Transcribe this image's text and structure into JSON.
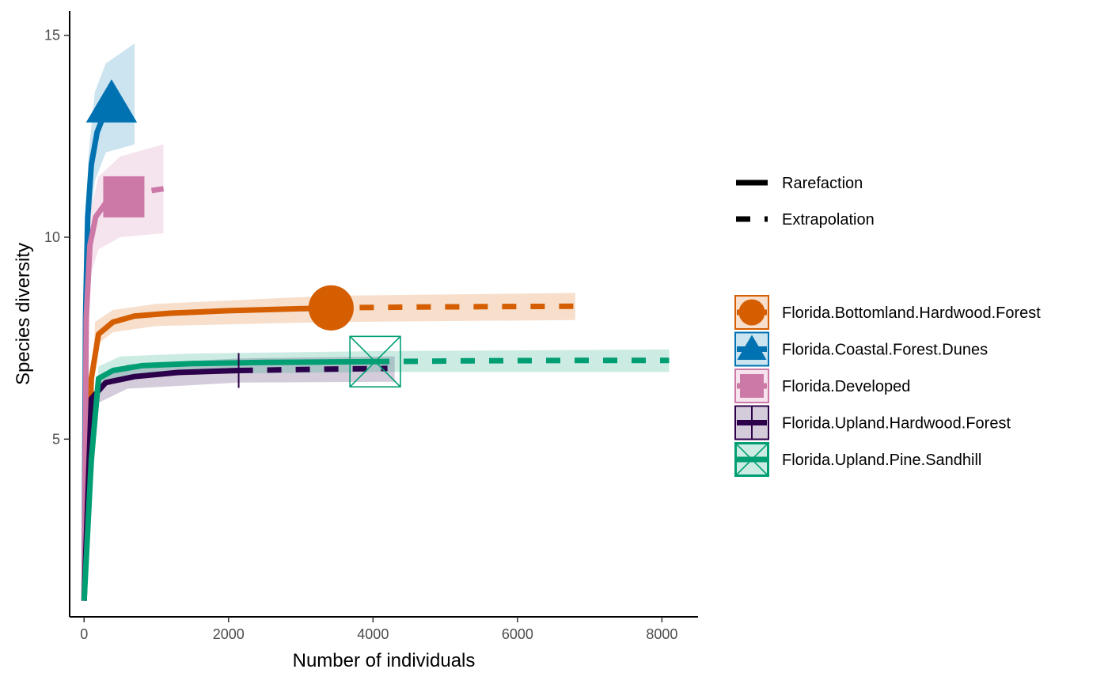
{
  "chart_data": {
    "type": "line",
    "xlabel": "Number of individuals",
    "ylabel": "Species diversity",
    "xlim": [
      -200,
      8500
    ],
    "ylim": [
      0.6,
      15.6
    ],
    "x_ticks": [
      0,
      2000,
      4000,
      6000,
      8000
    ],
    "y_ticks": [
      5,
      10,
      15
    ],
    "grid": false,
    "legend_position": "right",
    "method_legend": [
      {
        "label": "Rarefaction",
        "dash": "solid"
      },
      {
        "label": "Extrapolation",
        "dash": "dashed"
      }
    ],
    "series": [
      {
        "name": "Florida.Bottomland.Hardwood.Forest",
        "color": "#D55E00",
        "marker": "circle",
        "reference": {
          "x": 3420,
          "y": 8.25
        },
        "rarefaction": [
          [
            0,
            1.0
          ],
          [
            100,
            6.5
          ],
          [
            200,
            7.6
          ],
          [
            400,
            7.9
          ],
          [
            700,
            8.05
          ],
          [
            1200,
            8.12
          ],
          [
            2000,
            8.18
          ],
          [
            3420,
            8.25
          ]
        ],
        "extrapolation": [
          [
            3420,
            8.25
          ],
          [
            4500,
            8.27
          ],
          [
            5500,
            8.28
          ],
          [
            6800,
            8.29
          ]
        ],
        "ci_lower": [
          [
            0,
            1.0
          ],
          [
            150,
            7.3
          ],
          [
            400,
            7.65
          ],
          [
            1000,
            7.8
          ],
          [
            3420,
            7.9
          ],
          [
            6800,
            7.95
          ]
        ],
        "ci_upper": [
          [
            0,
            1.0
          ],
          [
            150,
            7.9
          ],
          [
            400,
            8.2
          ],
          [
            1000,
            8.35
          ],
          [
            3420,
            8.55
          ],
          [
            6800,
            8.62
          ]
        ]
      },
      {
        "name": "Florida.Coastal.Forest.Dunes",
        "color": "#0072B2",
        "marker": "triangle",
        "reference": {
          "x": 380,
          "y": 13.3
        },
        "rarefaction": [
          [
            0,
            1.0
          ],
          [
            20,
            8.0
          ],
          [
            50,
            10.5
          ],
          [
            100,
            11.8
          ],
          [
            180,
            12.6
          ],
          [
            280,
            13.05
          ],
          [
            380,
            13.3
          ]
        ],
        "extrapolation": [
          [
            380,
            13.3
          ],
          [
            480,
            13.4
          ]
        ],
        "ci_lower": [
          [
            0,
            1.0
          ],
          [
            60,
            10.0
          ],
          [
            150,
            11.4
          ],
          [
            300,
            12.1
          ],
          [
            700,
            12.3
          ]
        ],
        "ci_upper": [
          [
            0,
            1.0
          ],
          [
            60,
            12.0
          ],
          [
            150,
            13.6
          ],
          [
            300,
            14.3
          ],
          [
            700,
            14.8
          ]
        ]
      },
      {
        "name": "Florida.Developed",
        "color": "#CC79A7",
        "marker": "square",
        "reference": {
          "x": 550,
          "y": 11.0
        },
        "rarefaction": [
          [
            0,
            1.0
          ],
          [
            30,
            8.0
          ],
          [
            80,
            9.8
          ],
          [
            160,
            10.5
          ],
          [
            300,
            10.85
          ],
          [
            550,
            11.0
          ]
        ],
        "extrapolation": [
          [
            550,
            11.0
          ],
          [
            800,
            11.12
          ],
          [
            1100,
            11.2
          ]
        ],
        "ci_lower": [
          [
            0,
            1.0
          ],
          [
            80,
            9.0
          ],
          [
            200,
            9.7
          ],
          [
            500,
            10.0
          ],
          [
            1100,
            10.1
          ]
        ],
        "ci_upper": [
          [
            0,
            1.0
          ],
          [
            80,
            10.6
          ],
          [
            200,
            11.5
          ],
          [
            500,
            12.0
          ],
          [
            1100,
            12.3
          ]
        ]
      },
      {
        "name": "Florida.Upland.Hardwood.Forest",
        "color": "#2D004B",
        "marker": "plus",
        "reference": {
          "x": 2140,
          "y": 6.7
        },
        "rarefaction": [
          [
            0,
            1.0
          ],
          [
            100,
            6.0
          ],
          [
            300,
            6.4
          ],
          [
            700,
            6.55
          ],
          [
            1300,
            6.65
          ],
          [
            2140,
            6.7
          ]
        ],
        "extrapolation": [
          [
            2140,
            6.7
          ],
          [
            3200,
            6.73
          ],
          [
            4200,
            6.75
          ]
        ],
        "ci_lower": [
          [
            0,
            1.0
          ],
          [
            200,
            5.9
          ],
          [
            600,
            6.25
          ],
          [
            2140,
            6.4
          ],
          [
            4300,
            6.42
          ]
        ],
        "ci_upper": [
          [
            0,
            1.0
          ],
          [
            200,
            6.4
          ],
          [
            600,
            6.85
          ],
          [
            2140,
            7.0
          ],
          [
            4300,
            7.05
          ]
        ]
      },
      {
        "name": "Florida.Upland.Pine.Sandhill",
        "color": "#009E73",
        "marker": "boxed-x",
        "reference": {
          "x": 4030,
          "y": 6.92
        },
        "rarefaction": [
          [
            0,
            1.0
          ],
          [
            100,
            4.5
          ],
          [
            200,
            6.5
          ],
          [
            400,
            6.7
          ],
          [
            800,
            6.82
          ],
          [
            1500,
            6.87
          ],
          [
            2500,
            6.9
          ],
          [
            4030,
            6.92
          ]
        ],
        "extrapolation": [
          [
            4030,
            6.92
          ],
          [
            5500,
            6.94
          ],
          [
            7000,
            6.95
          ],
          [
            8100,
            6.95
          ]
        ],
        "ci_lower": [
          [
            0,
            1.0
          ],
          [
            200,
            6.3
          ],
          [
            500,
            6.55
          ],
          [
            1500,
            6.62
          ],
          [
            4030,
            6.66
          ],
          [
            8100,
            6.66
          ]
        ],
        "ci_upper": [
          [
            0,
            1.0
          ],
          [
            200,
            6.8
          ],
          [
            500,
            7.05
          ],
          [
            1500,
            7.12
          ],
          [
            4030,
            7.18
          ],
          [
            8100,
            7.22
          ]
        ]
      }
    ]
  }
}
